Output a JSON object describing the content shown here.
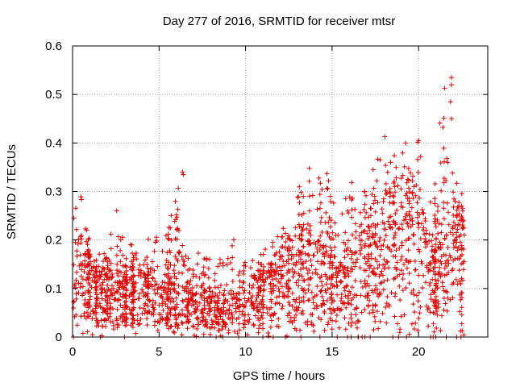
{
  "chart_data": {
    "type": "scatter",
    "title": "Day 277 of 2016, SRMTID for receiver mtsr",
    "xlabel": "GPS time / hours",
    "ylabel": "SRMTID / TECUs",
    "xlim": [
      0,
      24
    ],
    "ylim": [
      0,
      0.6
    ],
    "x_ticks": [
      0,
      5,
      10,
      15,
      20
    ],
    "y_ticks": [
      0,
      0.1,
      0.2,
      0.3,
      0.4,
      0.5,
      0.6
    ],
    "x_tick_labels": [
      "0",
      "5",
      "10",
      "15",
      "20"
    ],
    "y_tick_labels": [
      "0",
      "0.1",
      "0.2",
      "0.3",
      "0.4",
      "0.5",
      "0.6"
    ],
    "grid": true,
    "marker": "+",
    "color": "#e00000",
    "envelope_hours": [
      0,
      0.5,
      1,
      1.5,
      2,
      2.5,
      3,
      3.5,
      4,
      4.5,
      5,
      5.5,
      6,
      6.5,
      7,
      7.5,
      8,
      8.5,
      9,
      9.5,
      10,
      10.5,
      11,
      11.5,
      12,
      12.5,
      13,
      13.5,
      14,
      14.5,
      15,
      15.5,
      16,
      16.5,
      17,
      17.5,
      18,
      18.5,
      19,
      19.5,
      20,
      20.5,
      21,
      21.5,
      22,
      22.5
    ],
    "envelope_typical": [
      0.11,
      0.13,
      0.11,
      0.1,
      0.1,
      0.09,
      0.08,
      0.085,
      0.09,
      0.09,
      0.085,
      0.08,
      0.075,
      0.07,
      0.065,
      0.065,
      0.065,
      0.06,
      0.06,
      0.065,
      0.07,
      0.08,
      0.09,
      0.1,
      0.12,
      0.13,
      0.14,
      0.15,
      0.13,
      0.12,
      0.11,
      0.1,
      0.12,
      0.14,
      0.14,
      0.15,
      0.17,
      0.2,
      0.21,
      0.21,
      0.2,
      0.14,
      0.12,
      0.14,
      0.16,
      0.17
    ],
    "envelope_max": [
      0.25,
      0.29,
      0.21,
      0.17,
      0.18,
      0.27,
      0.2,
      0.2,
      0.24,
      0.19,
      0.22,
      0.21,
      0.34,
      0.2,
      0.17,
      0.18,
      0.17,
      0.16,
      0.19,
      0.21,
      0.17,
      0.16,
      0.18,
      0.2,
      0.21,
      0.25,
      0.3,
      0.38,
      0.31,
      0.37,
      0.29,
      0.26,
      0.31,
      0.34,
      0.31,
      0.36,
      0.41,
      0.39,
      0.42,
      0.35,
      0.41,
      0.25,
      0.38,
      0.53,
      0.34,
      0.3
    ],
    "spikes": [
      {
        "x": 21.9,
        "y": 0.535
      },
      {
        "x": 21.9,
        "y": 0.52
      },
      {
        "x": 21.85,
        "y": 0.485
      },
      {
        "x": 21.9,
        "y": 0.45
      },
      {
        "x": 6.35,
        "y": 0.34
      },
      {
        "x": 6.4,
        "y": 0.335
      },
      {
        "x": 18.05,
        "y": 0.413
      },
      {
        "x": 19.25,
        "y": 0.4
      },
      {
        "x": 20.0,
        "y": 0.405
      }
    ],
    "seed": 277
  }
}
